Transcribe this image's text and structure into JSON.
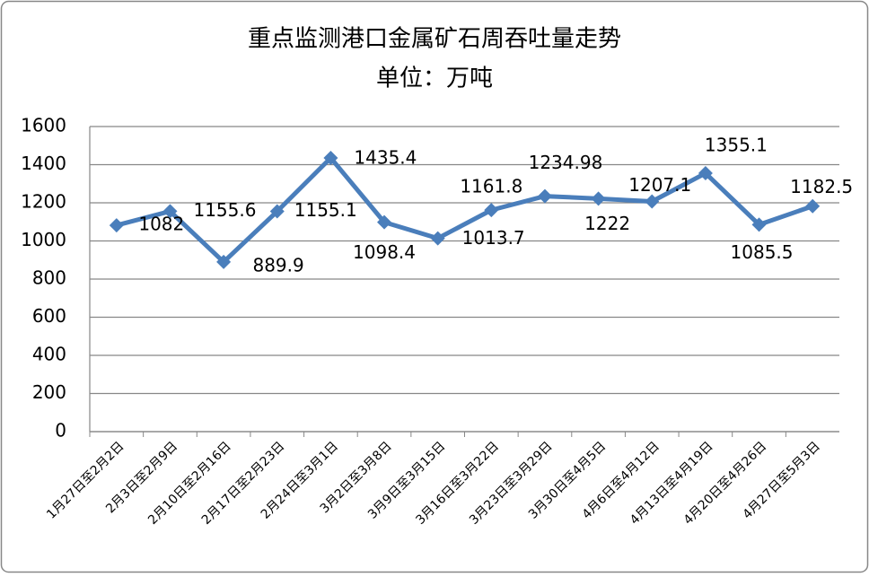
{
  "chart_data": {
    "type": "line",
    "title": "重点监测港口金属矿石周吞吐量走势",
    "subtitle": "单位：万吨",
    "categories": [
      "1月27日至2月2日",
      "2月3日至2月9日",
      "2月10日至2月16日",
      "2月17日至2月23日",
      "2月24日至3月1日",
      "3月2日至3月8日",
      "3月9日至3月15日",
      "3月16日至3月22日",
      "3月23日至3月29日",
      "3月30日至4月5日",
      "4月6日至4月12日",
      "4月13日至4月19日",
      "4月20日至4月26日",
      "4月27日至5月3日"
    ],
    "series": [
      {
        "color": "#4a7ebb",
        "values": [
          1082,
          1155.6,
          889.9,
          1155.1,
          1435.4,
          1098.4,
          1013.7,
          1161.8,
          1234.98,
          1222,
          1207.1,
          1355.1,
          1085.5,
          1182.5
        ]
      }
    ],
    "ylim": [
      0,
      1600
    ],
    "yticks": [
      0,
      200,
      400,
      600,
      800,
      1000,
      1200,
      1400,
      1600
    ],
    "grid": true
  }
}
